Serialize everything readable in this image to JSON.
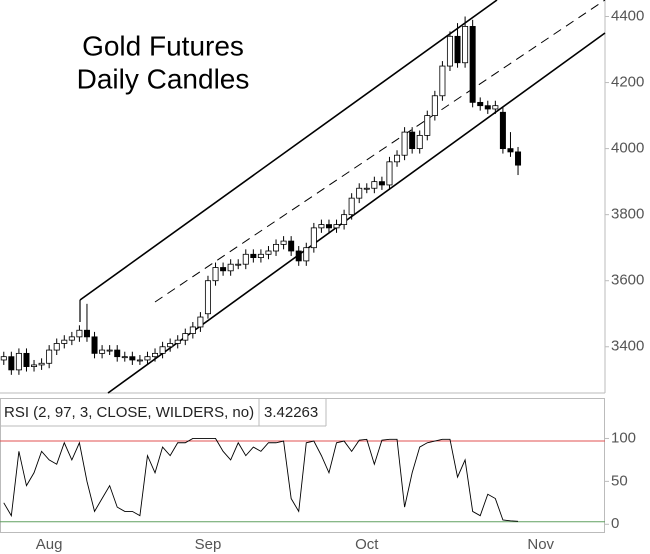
{
  "chart_data": [
    {
      "type": "candlestick",
      "title": "Gold Futures",
      "subtitle": "Daily Candles",
      "categories": [
        null,
        null,
        null,
        null,
        null,
        null,
        "Aug",
        null,
        null,
        null,
        null,
        null,
        null,
        null,
        null,
        null,
        null,
        null,
        null,
        null,
        null,
        null,
        null,
        null,
        null,
        null,
        null,
        "Sep",
        null,
        null,
        null,
        null,
        null,
        null,
        null,
        null,
        null,
        null,
        null,
        null,
        null,
        null,
        null,
        null,
        null,
        null,
        null,
        null,
        "Oct",
        null,
        null,
        null,
        null,
        null,
        null,
        null,
        null,
        null,
        null,
        null,
        null,
        null,
        null,
        null,
        null,
        null,
        null,
        null,
        null,
        null,
        null,
        "Nov",
        null,
        null,
        null,
        null,
        null,
        null,
        null,
        null
      ],
      "open": [
        3360,
        3370,
        3330,
        3380,
        3340,
        3345,
        3350,
        3390,
        3410,
        3420,
        3430,
        3450,
        3430,
        3380,
        3390,
        3390,
        3370,
        3370,
        3360,
        3360,
        3370,
        3380,
        3400,
        3410,
        3420,
        3440,
        3460,
        3500,
        3600,
        3640,
        3630,
        3650,
        3650,
        3680,
        3670,
        3680,
        3690,
        3710,
        3720,
        3690,
        3660,
        3700,
        3760,
        3770,
        3760,
        3770,
        3800,
        3850,
        3880,
        3880,
        3900,
        3890,
        3960,
        3980,
        4050,
        4000,
        4040,
        4100,
        4160,
        4250,
        4340,
        4260,
        4370,
        4140,
        4130,
        4120,
        4110,
        4000,
        3990,
        null,
        null,
        null,
        null,
        null,
        null,
        null,
        null,
        null,
        null,
        null
      ],
      "high": [
        3385,
        3385,
        3395,
        3395,
        3360,
        3365,
        3405,
        3425,
        3435,
        3445,
        3465,
        3530,
        3445,
        3405,
        3405,
        3405,
        3385,
        3385,
        3375,
        3385,
        3395,
        3415,
        3425,
        3435,
        3455,
        3475,
        3505,
        3615,
        3655,
        3655,
        3665,
        3665,
        3695,
        3695,
        3695,
        3705,
        3725,
        3735,
        3735,
        3705,
        3715,
        3775,
        3785,
        3785,
        3785,
        3815,
        3865,
        3895,
        3895,
        3915,
        3915,
        3975,
        3995,
        4065,
        4065,
        4055,
        4115,
        4175,
        4265,
        4355,
        4380,
        4400,
        4390,
        4155,
        4145,
        4145,
        4125,
        4050,
        4005,
        null,
        null,
        null,
        null,
        null,
        null,
        null,
        null,
        null,
        null,
        null
      ],
      "low": [
        3345,
        3315,
        3315,
        3325,
        3325,
        3330,
        3335,
        3375,
        3395,
        3405,
        3415,
        3415,
        3365,
        3365,
        3375,
        3355,
        3355,
        3345,
        3345,
        3345,
        3355,
        3365,
        3385,
        3395,
        3405,
        3425,
        3445,
        3485,
        3585,
        3615,
        3615,
        3635,
        3635,
        3655,
        3655,
        3665,
        3675,
        3695,
        3675,
        3645,
        3645,
        3685,
        3745,
        3745,
        3745,
        3755,
        3785,
        3835,
        3865,
        3865,
        3875,
        3875,
        3945,
        3965,
        3985,
        3985,
        4025,
        4085,
        4145,
        4235,
        4245,
        4245,
        4125,
        4115,
        4105,
        4105,
        3985,
        3975,
        3920,
        null,
        null,
        null,
        null,
        null,
        null,
        null,
        null,
        null,
        null,
        null
      ],
      "close": [
        3370,
        3330,
        3380,
        3340,
        3345,
        3350,
        3390,
        3410,
        3420,
        3430,
        3450,
        3430,
        3380,
        3390,
        3390,
        3370,
        3370,
        3360,
        3360,
        3370,
        3380,
        3400,
        3410,
        3420,
        3440,
        3460,
        3490,
        3600,
        3640,
        3630,
        3650,
        3650,
        3680,
        3670,
        3680,
        3690,
        3710,
        3720,
        3690,
        3660,
        3700,
        3760,
        3770,
        3760,
        3770,
        3800,
        3850,
        3880,
        3880,
        3900,
        3890,
        3960,
        3980,
        4050,
        4000,
        4040,
        4100,
        4160,
        4250,
        4340,
        4260,
        4370,
        4140,
        4130,
        4120,
        4130,
        4000,
        3990,
        3950,
        null,
        null,
        null,
        null,
        null,
        null,
        null,
        null,
        null,
        null,
        null
      ],
      "up_color": "#ffffff",
      "down_color": "#000000",
      "ylim": [
        3260,
        4450
      ],
      "yticks": [
        3400,
        3600,
        3800,
        4000,
        4200,
        4400
      ]
    },
    {
      "type": "line",
      "title": "RSI (2, 97, 3, CLOSE, WILDERS, no)",
      "color": "#000000",
      "values": [
        25,
        10,
        85,
        45,
        60,
        85,
        75,
        70,
        95,
        75,
        95,
        50,
        15,
        30,
        45,
        20,
        15,
        15,
        10,
        80,
        60,
        90,
        80,
        95,
        95,
        100,
        100,
        100,
        100,
        85,
        75,
        95,
        80,
        90,
        85,
        95,
        95,
        97,
        30,
        15,
        95,
        97,
        80,
        60,
        95,
        97,
        85,
        98,
        99,
        70,
        98,
        99,
        99,
        20,
        60,
        90,
        95,
        97,
        99,
        99,
        55,
        75,
        15,
        10,
        35,
        30,
        5,
        4,
        3.42263,
        null,
        null,
        null,
        null,
        null,
        null,
        null,
        null,
        null,
        null,
        null
      ],
      "overbought": 97,
      "overbought_color": "#e05050",
      "oversold": 3,
      "oversold_color": "#60a060",
      "ylim": [
        -9,
        146
      ],
      "yticks": [
        0,
        50,
        100
      ]
    }
  ]
}
